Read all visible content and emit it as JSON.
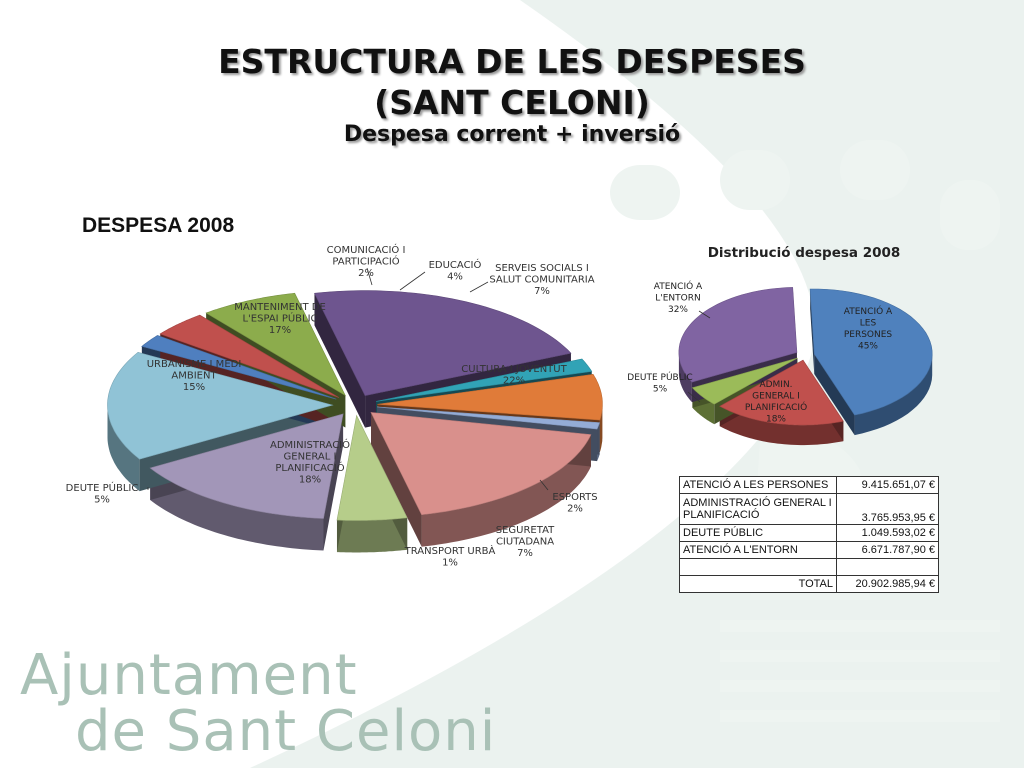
{
  "page": {
    "title_line1": "ESTRUCTURA DE LES DESPESES",
    "title_line2": "(SANT CELONI)",
    "subtitle": "Despesa corrent + inversió",
    "section_label": "DESPESA 2008"
  },
  "logo": {
    "line1": "Ajuntament",
    "line2": "de Sant Celoni"
  },
  "chart_data": [
    {
      "type": "pie",
      "title": "",
      "categories": [
        "CULTURA I JOVENTUT",
        "ESPORTS",
        "SEGURETAT CIUTADANA",
        "TRANSPORT URBÀ",
        "ADMINISTRACIÓ GENERAL I PLANIFICACIÓ",
        "DEUTE PÚBLIC",
        "URBANISME I MEDI AMBIENT",
        "MANTENIMENT DE L'ESPAI PÚBLIC",
        "COMUNICACIÓ I PARTICIPACIÓ",
        "EDUCACIÓ",
        "SERVEIS SOCIALS I SALUT COMUNITARIA"
      ],
      "values": [
        22,
        2,
        7,
        1,
        18,
        5,
        15,
        17,
        2,
        4,
        7
      ],
      "value_labels": [
        "22%",
        "2%",
        "7%",
        "1%",
        "18%",
        "5%",
        "15%",
        "17%",
        "2%",
        "4%",
        "7%"
      ],
      "colors": [
        "#6e558f",
        "#31a3b6",
        "#e07b39",
        "#94acd6",
        "#d9908c",
        "#b6cd8a",
        "#a296b8",
        "#90c3d6",
        "#4f7fbf",
        "#c0504d",
        "#8cac4c"
      ],
      "legend": "none"
    },
    {
      "type": "pie",
      "title": "Distribució despesa 2008",
      "categories": [
        "ATENCIÓ A LES PERSONES",
        "ADMIN. GENERAL I PLANIFICACIÓ",
        "DEUTE PÚBLIC",
        "ATENCIÓ A L'ENTORN"
      ],
      "values": [
        45,
        18,
        5,
        32
      ],
      "value_labels": [
        "45%",
        "18%",
        "5%",
        "32%"
      ],
      "colors": [
        "#4f81bd",
        "#c0504d",
        "#9bbb59",
        "#8064a2"
      ],
      "legend": "none"
    }
  ],
  "table": {
    "rows": [
      {
        "label": "ATENCIÓ A LES PERSONES",
        "value": "9.415.651,07 €"
      },
      {
        "label": "ADMINISTRACIÓ GENERAL I PLANIFICACIÓ",
        "value": "3.765.953,95 €"
      },
      {
        "label": "DEUTE PÚBLIC",
        "value": "1.049.593,02 €"
      },
      {
        "label": "ATENCIÓ A L'ENTORN",
        "value": "6.671.787,90 €"
      },
      {
        "label": "",
        "value": ""
      }
    ],
    "total_label": "TOTAL",
    "total_value": "20.902.985,94 €"
  }
}
